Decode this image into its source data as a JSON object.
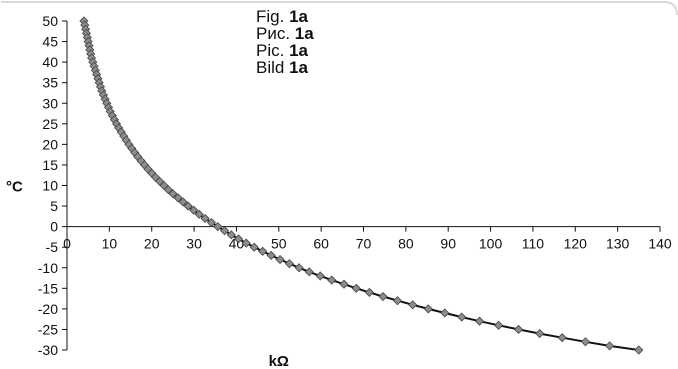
{
  "caption": {
    "lines": [
      {
        "prefix": "Fig. ",
        "bold": "1a"
      },
      {
        "prefix": "Рис. ",
        "bold": "1a"
      },
      {
        "prefix": "Pic. ",
        "bold": "1a"
      },
      {
        "prefix": "Bild ",
        "bold": "1a"
      }
    ]
  },
  "chart_data": {
    "type": "scatter",
    "title": "",
    "xlabel": "kΩ",
    "ylabel": "°C",
    "xlim": [
      0,
      140
    ],
    "ylim": [
      -30,
      50
    ],
    "x_ticks": [
      0,
      10,
      20,
      30,
      40,
      50,
      60,
      70,
      80,
      90,
      100,
      110,
      120,
      130,
      140
    ],
    "y_ticks": [
      50,
      45,
      40,
      35,
      30,
      25,
      20,
      15,
      10,
      5,
      0,
      -5,
      -10,
      -15,
      -20,
      -25,
      -30
    ],
    "grid": false,
    "legend": "none",
    "marker_color": "#8c8c8c",
    "line_color": "#111111",
    "series": [
      {
        "marker": "diamond",
        "x": [
          4.0,
          4.2,
          4.4,
          4.6,
          4.8,
          5.0,
          5.2,
          5.4,
          5.6,
          5.8,
          6.1,
          6.4,
          6.7,
          7.0,
          7.3,
          7.6,
          7.9,
          8.2,
          8.6,
          9.0,
          9.4,
          9.8,
          10.2,
          10.7,
          11.2,
          11.7,
          12.2,
          12.8,
          13.4,
          14.0,
          14.6,
          15.3,
          16.0,
          16.7,
          17.5,
          18.3,
          19.1,
          20.0,
          20.9,
          21.9,
          22.9,
          23.9,
          25.0,
          26.2,
          27.4,
          28.6,
          29.9,
          31.2,
          32.6,
          34.1,
          35.6,
          37.2,
          38.8,
          40.5,
          42.3,
          44.2,
          46.2,
          48.2,
          50.3,
          52.5,
          54.8,
          57.2,
          59.8,
          62.5,
          65.4,
          68.3,
          71.4,
          74.6,
          78.0,
          81.6,
          85.3,
          89.2,
          93.2,
          97.4,
          101.9,
          106.6,
          111.6,
          116.9,
          122.4,
          128.1,
          135.0
        ],
        "y": [
          50,
          49,
          48,
          47,
          46,
          45,
          44,
          43,
          42,
          41,
          40,
          39,
          38,
          37,
          36,
          35,
          34,
          33,
          32,
          31,
          30,
          29,
          28,
          27,
          26,
          25,
          24,
          23,
          22,
          21,
          20,
          19,
          18,
          17,
          16,
          15,
          14,
          13,
          12,
          11,
          10,
          9,
          8,
          7,
          6,
          5,
          4,
          3,
          2,
          1,
          0,
          -1,
          -2,
          -3,
          -4,
          -5,
          -6,
          -7,
          -8,
          -9,
          -10,
          -11,
          -12,
          -13,
          -14,
          -15,
          -16,
          -17,
          -18,
          -19,
          -20,
          -21,
          -22,
          -23,
          -24,
          -25,
          -26,
          -27,
          -28,
          -29,
          -30
        ]
      }
    ]
  }
}
